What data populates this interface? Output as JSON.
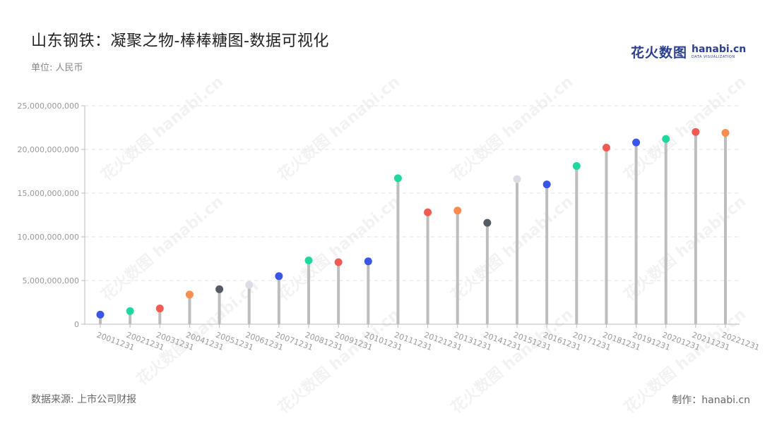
{
  "header": {
    "title": "山东钢铁：凝聚之物-棒棒糖图-数据可视化",
    "unit": "单位: 人民币"
  },
  "logo": {
    "cn": "花火数图",
    "en": "hanabi.cn",
    "sub": "DATA VISUALIZATION"
  },
  "watermark_text": "花火数图 hanabi.cn",
  "footer": {
    "source": "数据来源: 上市公司财报",
    "credit": "制作：hanabi.cn"
  },
  "chart_data": {
    "type": "lollipop",
    "title": "山东钢铁：凝聚之物-棒棒糖图-数据可视化",
    "ylabel": "单位: 人民币",
    "xlabel": "",
    "ylim": [
      0,
      25000000000
    ],
    "yticks": [
      0,
      5000000000,
      10000000000,
      15000000000,
      20000000000,
      25000000000
    ],
    "ytick_labels": [
      "0",
      "5,000,000,000",
      "10,000,000,000",
      "15,000,000,000",
      "20,000,000,000",
      "25,000,000,000"
    ],
    "grid": true,
    "stem_color": "#bdbdbd",
    "categories": [
      "20011231",
      "20021231",
      "20031231",
      "20041231",
      "20051231",
      "20061231",
      "20071231",
      "20081231",
      "20091231",
      "20101231",
      "20111231",
      "20121231",
      "20131231",
      "20141231",
      "20151231",
      "20161231",
      "20171231",
      "20181231",
      "20191231",
      "20201231",
      "20211231",
      "20221231"
    ],
    "values": [
      1100000000,
      1500000000,
      1800000000,
      3400000000,
      4000000000,
      4500000000,
      5500000000,
      7300000000,
      7100000000,
      7200000000,
      16700000000,
      12800000000,
      13000000000,
      11600000000,
      16600000000,
      16000000000,
      18100000000,
      20200000000,
      20800000000,
      21200000000,
      22000000000,
      21900000000
    ],
    "dot_colors": [
      "#3b55e6",
      "#1fd8a0",
      "#f25a52",
      "#fa8c4e",
      "#555a64",
      "#dcdde4",
      "#3b55e6",
      "#1fd8a0",
      "#f25a52",
      "#3b55e6",
      "#1fd8a0",
      "#f25a52",
      "#fa8c4e",
      "#555a64",
      "#dcdde4",
      "#3b55e6",
      "#1fd8a0",
      "#f25a52",
      "#3b55e6",
      "#1fd8a0",
      "#f25a52",
      "#fa8c4e"
    ]
  }
}
